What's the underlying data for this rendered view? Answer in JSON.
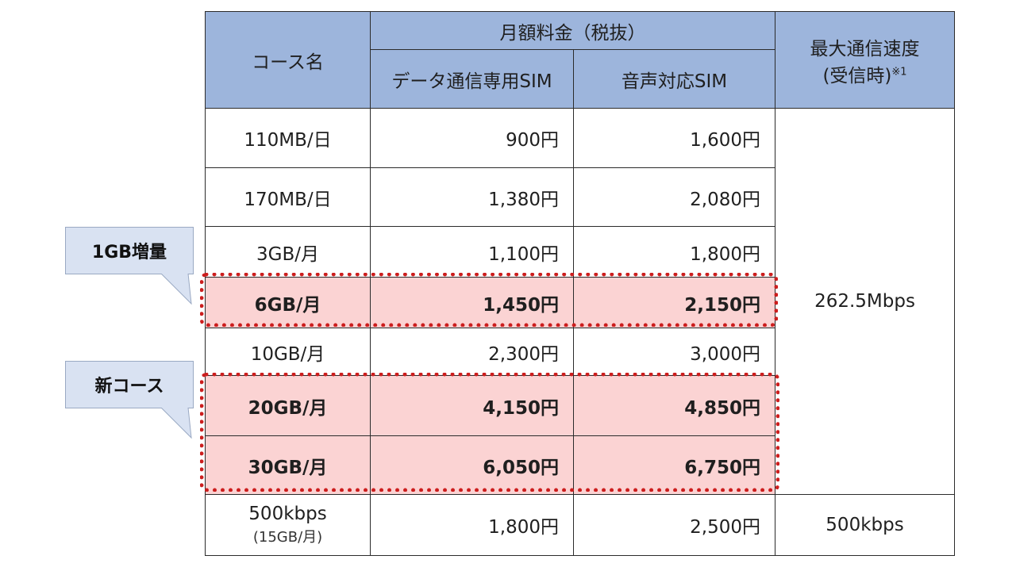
{
  "header": {
    "course_name": "コース名",
    "monthly_fee": "月額料金（税抜）",
    "data_sim": "データ通信専用SIM",
    "voice_sim": "音声対応SIM",
    "max_speed_line1": "最大通信速度",
    "max_speed_line2": "(受信時)",
    "max_speed_note": "※1"
  },
  "rows": [
    {
      "course": "110MB/日",
      "data": "900円",
      "voice": "1,600円"
    },
    {
      "course": "170MB/日",
      "data": "1,380円",
      "voice": "2,080円"
    },
    {
      "course": "3GB/月",
      "data": "1,100円",
      "voice": "1,800円"
    },
    {
      "course": "6GB/月",
      "data": "1,450円",
      "voice": "2,150円"
    },
    {
      "course": "10GB/月",
      "data": "2,300円",
      "voice": "3,000円"
    },
    {
      "course": "20GB/月",
      "data": "4,150円",
      "voice": "4,850円"
    },
    {
      "course": "30GB/月",
      "data": "6,050円",
      "voice": "6,750円"
    }
  ],
  "speed_main": "262.5Mbps",
  "last_row": {
    "course": "500kbps",
    "course_sub": "(15GB/月)",
    "data": "1,800円",
    "voice": "2,500円",
    "speed": "500kbps"
  },
  "callouts": {
    "increase": "1GB増量",
    "new_course": "新コース"
  },
  "colors": {
    "header_bg": "#9db5dc",
    "highlight_bg": "#fbd3d3",
    "dotted_border": "#cc1e1e",
    "callout_bg": "#d9e2f2"
  }
}
